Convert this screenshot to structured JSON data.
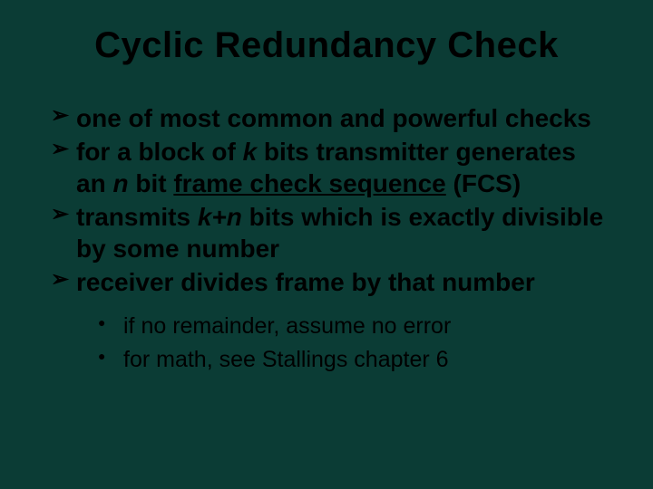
{
  "slide": {
    "background_color": "#0b3c35",
    "text_color": "#000000",
    "title": "Cyclic Redundancy Check",
    "title_fontsize": 40,
    "bullet_fontsize": 28,
    "sub_bullet_fontsize": 25,
    "bullets": [
      {
        "pre": "one of most common and powerful checks"
      },
      {
        "pre": "for a block of ",
        "it1": "k",
        "mid": " bits transmitter generates an ",
        "it2": "n",
        "post": " bit ",
        "u": "frame check sequence",
        "tail": " (FCS)"
      },
      {
        "pre": "transmits ",
        "it1": "k+n",
        "post": " bits which is exactly divisible by some number"
      },
      {
        "pre": "receiver divides frame by that number"
      }
    ],
    "sub_bullets": [
      "if no remainder, assume no error",
      "for math, see Stallings chapter 6"
    ]
  }
}
